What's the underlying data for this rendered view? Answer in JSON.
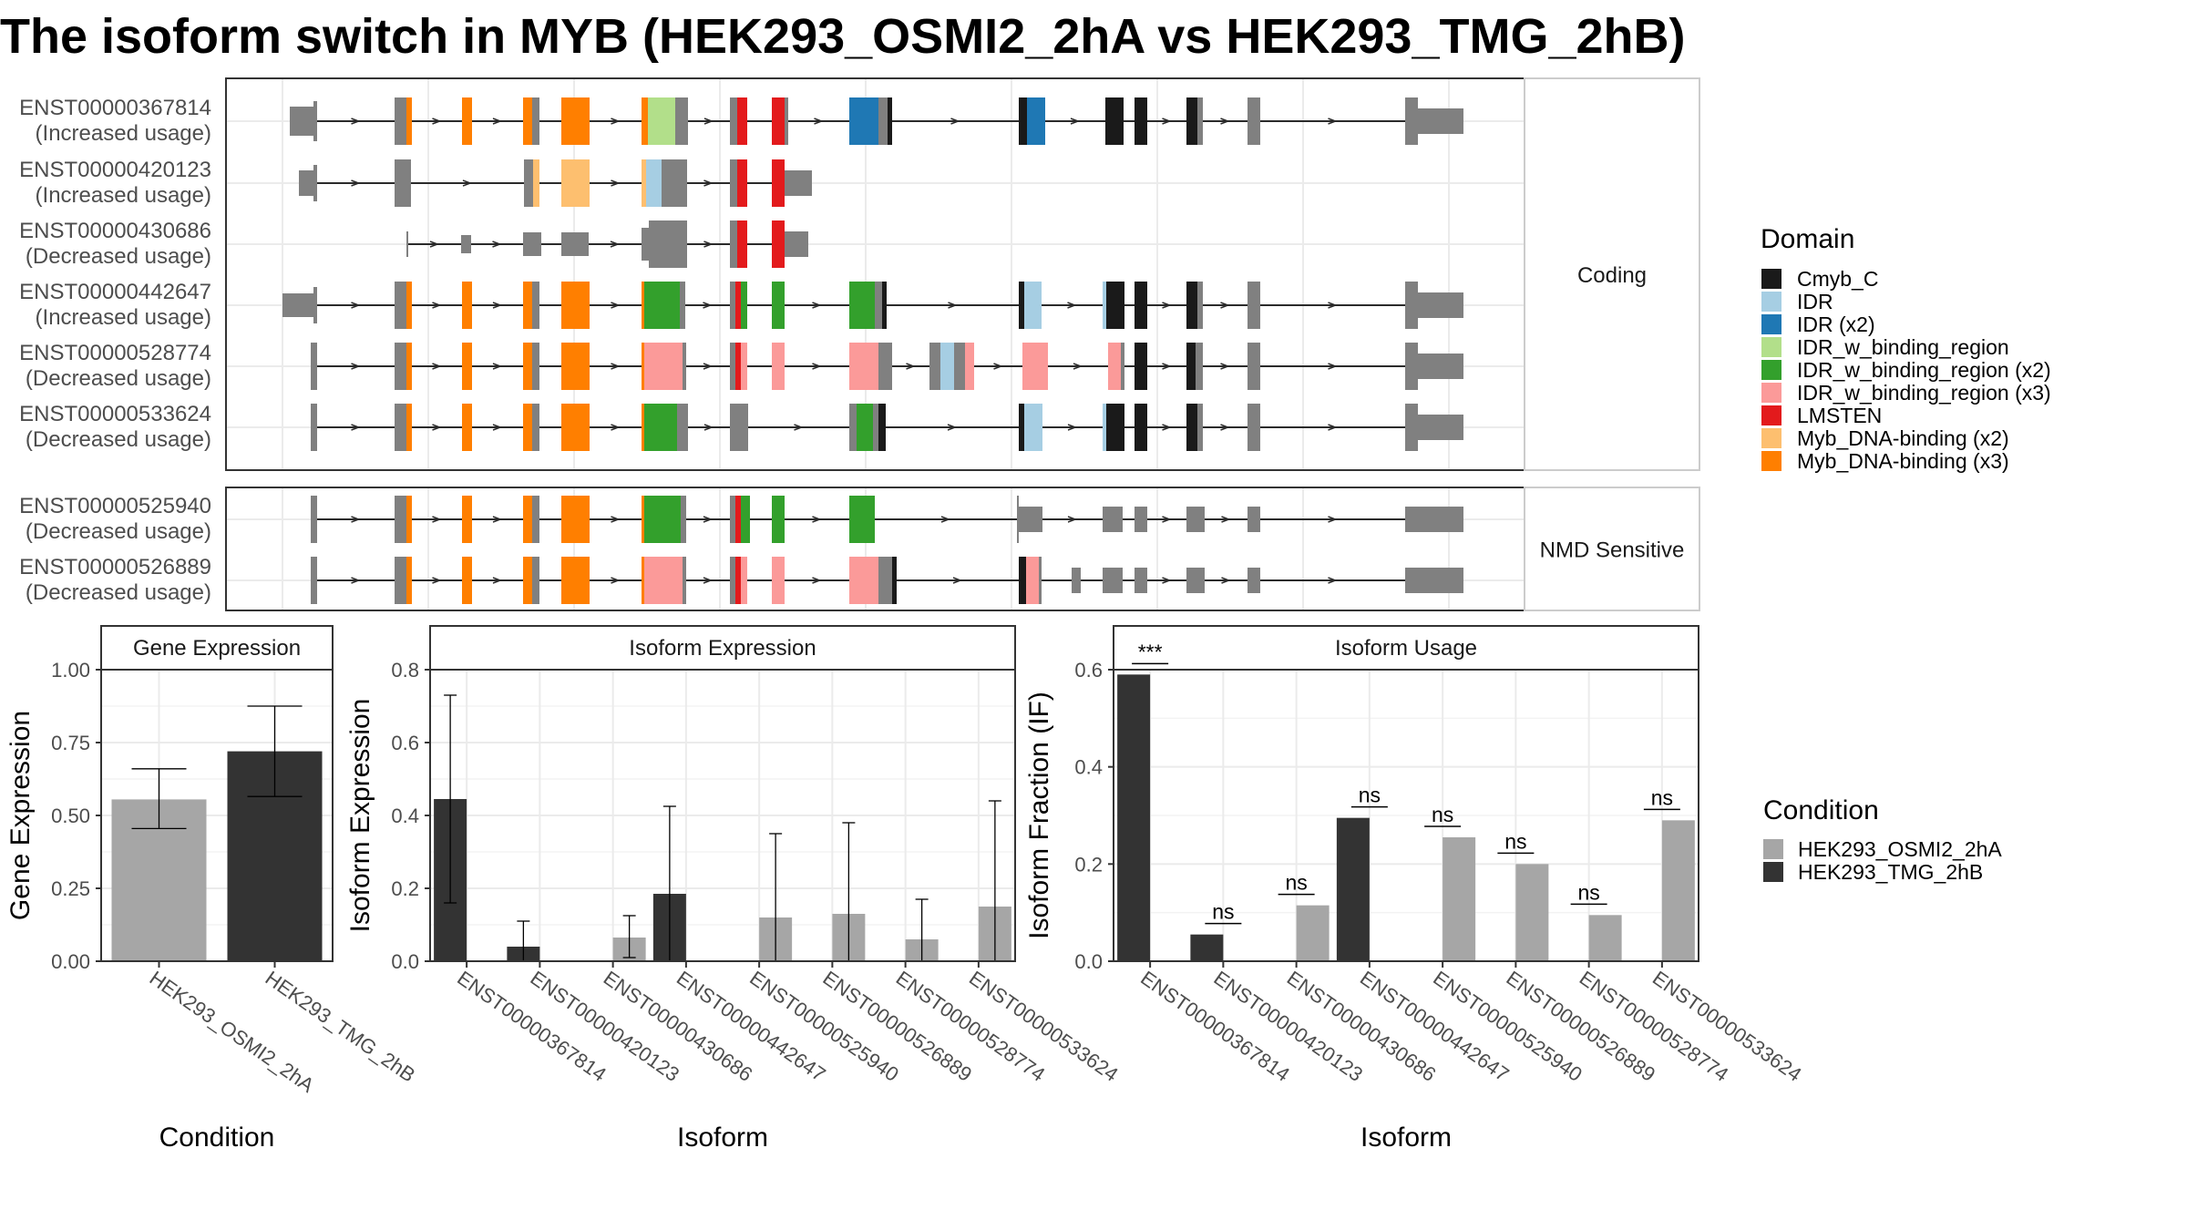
{
  "title": "The isoform switch in MYB (HEK293_OSMI2_2hA vs HEK293_TMG_2hB)",
  "colors": {
    "cond_a": "#a6a6a6",
    "cond_b": "#333333",
    "intron": "#2b2b2b",
    "exon": "#808080",
    "grid": "#ebebeb",
    "border": "#333333"
  },
  "chart_data": [
    {
      "type": "other",
      "name": "transcript_structure",
      "facets": [
        "Coding",
        "NMD Sensitive"
      ],
      "legend_title": "Domain",
      "domains": [
        {
          "name": "Cmyb_C",
          "color": "#1a1a1a"
        },
        {
          "name": "IDR",
          "color": "#a6cee3"
        },
        {
          "name": "IDR (x2)",
          "color": "#1f78b4"
        },
        {
          "name": "IDR_w_binding_region",
          "color": "#b2df8a"
        },
        {
          "name": "IDR_w_binding_region (x2)",
          "color": "#33a02c"
        },
        {
          "name": "IDR_w_binding_region (x3)",
          "color": "#fb9a99"
        },
        {
          "name": "LMSTEN",
          "color": "#e31a1c"
        },
        {
          "name": "Myb_DNA-binding (x2)",
          "color": "#fdbf6f"
        },
        {
          "name": "Myb_DNA-binding (x3)",
          "color": "#ff7f00"
        }
      ],
      "transcripts": [
        {
          "id": "ENST00000367814",
          "usage": "(Increased usage)",
          "facet": "Coding"
        },
        {
          "id": "ENST00000420123",
          "usage": "(Increased usage)",
          "facet": "Coding"
        },
        {
          "id": "ENST00000430686",
          "usage": "(Decreased usage)",
          "facet": "Coding"
        },
        {
          "id": "ENST00000442647",
          "usage": "(Increased usage)",
          "facet": "Coding"
        },
        {
          "id": "ENST00000528774",
          "usage": "(Decreased usage)",
          "facet": "Coding"
        },
        {
          "id": "ENST00000533624",
          "usage": "(Decreased usage)",
          "facet": "Coding"
        },
        {
          "id": "ENST00000525940",
          "usage": "(Decreased usage)",
          "facet": "NMD Sensitive"
        },
        {
          "id": "ENST00000526889",
          "usage": "(Decreased usage)",
          "facet": "NMD Sensitive"
        }
      ]
    },
    {
      "type": "bar",
      "name": "gene_expression",
      "strip": "Gene Expression",
      "xlabel": "Condition",
      "ylabel": "Gene Expression",
      "ylim": [
        0,
        1.0
      ],
      "yticks": [
        "0.00",
        "0.25",
        "0.50",
        "0.75",
        "1.00"
      ],
      "categories": [
        "HEK293_OSMI2_2hA",
        "HEK293_TMG_2hB"
      ],
      "values": [
        0.555,
        0.72
      ],
      "errors": [
        [
          0.455,
          0.66
        ],
        [
          0.565,
          0.875
        ]
      ]
    },
    {
      "type": "bar",
      "name": "isoform_expression",
      "strip": "Isoform Expression",
      "xlabel": "Isoform",
      "ylabel": "Isoform Expression",
      "ylim": [
        0,
        0.8
      ],
      "yticks": [
        "0.0",
        "0.2",
        "0.4",
        "0.6",
        "0.8"
      ],
      "categories": [
        "ENST00000367814",
        "ENST00000420123",
        "ENST00000430686",
        "ENST00000442647",
        "ENST00000525940",
        "ENST00000526889",
        "ENST00000528774",
        "ENST00000533624"
      ],
      "series": [
        {
          "name": "HEK293_OSMI2_2hA",
          "values": [
            0,
            0,
            0.065,
            0,
            0.12,
            0.13,
            0.06,
            0.15
          ],
          "errors": [
            null,
            null,
            [
              0.01,
              0.125
            ],
            null,
            [
              0.0,
              0.35
            ],
            [
              0.0,
              0.38
            ],
            [
              0.0,
              0.17
            ],
            [
              0.0,
              0.44
            ]
          ]
        },
        {
          "name": "HEK293_TMG_2hB",
          "values": [
            0.445,
            0.04,
            0,
            0.185,
            0,
            0,
            0,
            0
          ],
          "errors": [
            [
              0.16,
              0.73
            ],
            [
              0.0,
              0.11
            ],
            null,
            [
              0.0,
              0.425
            ],
            null,
            null,
            null,
            null
          ]
        }
      ]
    },
    {
      "type": "bar",
      "name": "isoform_usage",
      "strip": "Isoform Usage",
      "xlabel": "Isoform",
      "ylabel": "Isoform Fraction (IF)",
      "ylim": [
        0,
        0.6
      ],
      "yticks": [
        "0.0",
        "0.2",
        "0.4",
        "0.6"
      ],
      "categories": [
        "ENST00000367814",
        "ENST00000420123",
        "ENST00000430686",
        "ENST00000442647",
        "ENST00000525940",
        "ENST00000526889",
        "ENST00000528774",
        "ENST00000533624"
      ],
      "series": [
        {
          "name": "HEK293_OSMI2_2hA",
          "values": [
            0,
            0,
            0.115,
            0,
            0.255,
            0.2,
            0.095,
            0.29
          ]
        },
        {
          "name": "HEK293_TMG_2hB",
          "values": [
            0.59,
            0.055,
            0,
            0.295,
            0,
            0,
            0,
            0
          ]
        }
      ],
      "significance": [
        "***",
        "ns",
        "ns",
        "ns",
        "ns",
        "ns",
        "ns",
        "ns"
      ]
    }
  ],
  "legend_condition": {
    "title": "Condition",
    "items": [
      "HEK293_OSMI2_2hA",
      "HEK293_TMG_2hB"
    ]
  }
}
